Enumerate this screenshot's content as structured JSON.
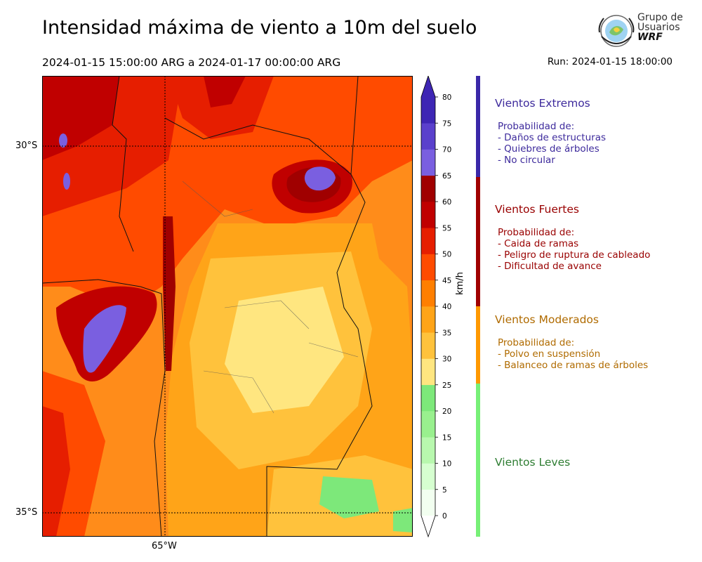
{
  "header": {
    "title": "Intensidad máxima de viento a 10m del suelo",
    "period": "2024-01-15 15:00:00 ARG  a  2024-01-17 00:00:00 ARG",
    "run": "Run: 2024-01-15 18:00:00"
  },
  "logo": {
    "line1": "Grupo de",
    "line2": "Usuarios",
    "line3": "WRF"
  },
  "map": {
    "lat_labels": [
      "30°S",
      "35°S"
    ],
    "lon_labels": [
      "65°W"
    ],
    "gridlines": "dotted"
  },
  "colorbar": {
    "unit": "km/h",
    "ticks": [
      "0",
      "5",
      "10",
      "15",
      "20",
      "25",
      "30",
      "35",
      "40",
      "45",
      "50",
      "55",
      "60",
      "65",
      "70",
      "75",
      "80"
    ],
    "colors": [
      "#f2fff0",
      "#d6ffd0",
      "#b8f8ae",
      "#99f08e",
      "#7de87a",
      "#ffe680",
      "#ffc23c",
      "#ffa418",
      "#ff7f00",
      "#ff4b00",
      "#e61e00",
      "#c00000",
      "#a00000",
      "#7a5fe0",
      "#5a40cc",
      "#3e26b4"
    ],
    "extend_color": "#3e26b4"
  },
  "categories": [
    {
      "title": "Vientos Extremos",
      "color": "#3d2a9c",
      "bar_color": "#3a28a8",
      "lines": [
        "Probabilidad de:",
        "- Daños de estructuras",
        "- Quiebres de árboles",
        "- No circular"
      ]
    },
    {
      "title": "Vientos Fuertes",
      "color": "#990000",
      "bar_color": "#a00000",
      "lines": [
        "Probabilidad de:",
        "- Caida de ramas",
        "- Peligro de ruptura de cableado",
        "- Dificultad de avance"
      ]
    },
    {
      "title": "Vientos Moderados",
      "color": "#b06b00",
      "bar_color": "#ff9900",
      "lines": [
        "Probabilidad de:",
        "- Polvo en suspensión",
        "- Balanceo de ramas de árboles"
      ]
    },
    {
      "title": "Vientos Leves",
      "color": "#2e7d32",
      "bar_color": "#77f077",
      "lines": []
    }
  ]
}
